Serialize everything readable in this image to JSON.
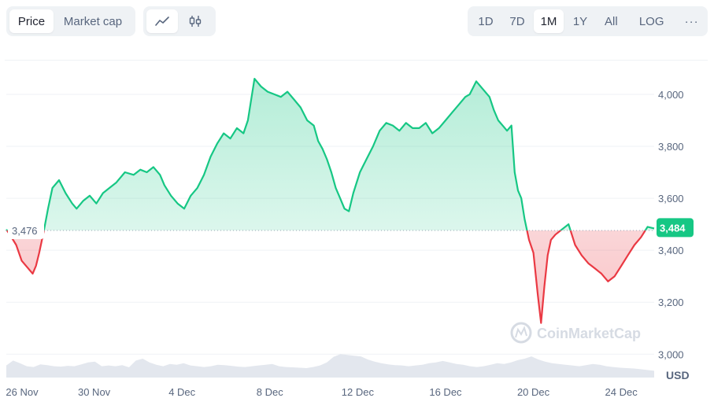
{
  "toolbar": {
    "metric_tabs": [
      {
        "label": "Price",
        "active": true
      },
      {
        "label": "Market cap",
        "active": false
      }
    ],
    "chart_type_icons": [
      "line-chart-icon",
      "candlestick-icon"
    ],
    "ranges": [
      {
        "label": "1D",
        "active": false
      },
      {
        "label": "7D",
        "active": false
      },
      {
        "label": "1M",
        "active": true
      },
      {
        "label": "1Y",
        "active": false
      },
      {
        "label": "All",
        "active": false
      }
    ],
    "log_label": "LOG",
    "more_label": "···"
  },
  "watermark": "CoinMarketCap",
  "colors": {
    "up": "#16c784",
    "down": "#ea3943",
    "grid": "#eff2f5",
    "volume": "#e3e7ee"
  },
  "chart_data": {
    "type": "area",
    "currency_label": "USD",
    "baseline_price": 3476,
    "baseline_label": "3,476",
    "last_price": 3484,
    "last_label": "3,484",
    "y_ticks": [
      "3,000",
      "3,200",
      "3,400",
      "3,600",
      "3,800",
      "4,000"
    ],
    "y_tick_values": [
      3000,
      3200,
      3400,
      3600,
      3800,
      4000
    ],
    "ylim": [
      2910,
      4130
    ],
    "x_ticks": [
      "26 Nov",
      "30 Nov",
      "4 Dec",
      "8 Dec",
      "12 Dec",
      "16 Dec",
      "20 Dec",
      "24 Dec"
    ],
    "x_tick_days": [
      0,
      4,
      8,
      12,
      16,
      20,
      24,
      28
    ],
    "xlim_days": [
      0,
      29.5
    ],
    "series": [
      {
        "x_days": [
          0,
          0.2,
          0.45,
          0.7,
          1.0,
          1.2,
          1.35,
          1.5,
          1.7,
          1.9,
          2.1,
          2.4,
          2.7,
          3.0,
          3.2,
          3.5,
          3.8,
          4.1,
          4.4,
          4.7,
          5.0,
          5.4,
          5.8,
          6.1,
          6.4,
          6.7,
          7.0,
          7.2,
          7.5,
          7.8,
          8.1,
          8.4,
          8.7,
          9.0,
          9.3,
          9.6,
          9.9,
          10.2,
          10.5,
          10.8,
          11.0,
          11.15,
          11.3,
          11.6,
          11.9,
          12.2,
          12.5,
          12.8,
          13.1,
          13.4,
          13.7,
          14.0,
          14.2,
          14.4,
          14.6,
          14.8,
          15.0,
          15.2,
          15.4,
          15.6,
          15.8,
          16.1,
          16.4,
          16.7,
          17.0,
          17.3,
          17.6,
          17.9,
          18.2,
          18.5,
          18.8,
          19.1,
          19.4,
          19.7,
          20.0,
          20.3,
          20.6,
          20.9,
          21.1,
          21.4,
          21.7,
          22.0,
          22.2,
          22.4,
          22.6,
          22.8,
          23.0,
          23.15,
          23.3,
          23.45,
          23.6,
          23.8,
          24.0,
          24.2,
          24.35,
          24.5,
          24.65,
          24.8,
          25.0,
          25.3,
          25.6,
          25.9,
          26.2,
          26.5,
          26.8,
          27.1,
          27.4,
          27.7,
          28.0,
          28.3,
          28.6,
          28.9,
          29.2,
          29.5
        ],
        "values": [
          3480,
          3455,
          3420,
          3360,
          3330,
          3310,
          3340,
          3390,
          3470,
          3560,
          3640,
          3670,
          3620,
          3580,
          3560,
          3590,
          3610,
          3580,
          3620,
          3640,
          3660,
          3700,
          3690,
          3710,
          3700,
          3720,
          3690,
          3650,
          3610,
          3580,
          3560,
          3610,
          3640,
          3690,
          3760,
          3810,
          3850,
          3830,
          3870,
          3850,
          3900,
          3980,
          4060,
          4030,
          4010,
          4000,
          3990,
          4010,
          3980,
          3950,
          3900,
          3880,
          3820,
          3790,
          3750,
          3700,
          3640,
          3600,
          3560,
          3550,
          3620,
          3700,
          3750,
          3800,
          3860,
          3890,
          3880,
          3860,
          3890,
          3870,
          3870,
          3890,
          3850,
          3870,
          3900,
          3930,
          3960,
          3990,
          4000,
          4050,
          4020,
          3990,
          3940,
          3900,
          3880,
          3860,
          3880,
          3700,
          3630,
          3600,
          3520,
          3440,
          3390,
          3230,
          3120,
          3260,
          3380,
          3440,
          3460,
          3480,
          3500,
          3420,
          3380,
          3350,
          3330,
          3310,
          3280,
          3300,
          3340,
          3380,
          3420,
          3450,
          3490,
          3484
        ]
      }
    ],
    "volume": [
      0.32,
      0.45,
      0.38,
      0.3,
      0.28,
      0.35,
      0.33,
      0.3,
      0.29,
      0.31,
      0.3,
      0.35,
      0.4,
      0.42,
      0.3,
      0.32,
      0.3,
      0.33,
      0.27,
      0.45,
      0.5,
      0.4,
      0.34,
      0.3,
      0.36,
      0.34,
      0.38,
      0.32,
      0.3,
      0.28,
      0.3,
      0.34,
      0.33,
      0.31,
      0.29,
      0.28,
      0.3,
      0.32,
      0.34,
      0.36,
      0.3,
      0.28,
      0.27,
      0.26,
      0.25,
      0.28,
      0.32,
      0.4,
      0.55,
      0.62,
      0.6,
      0.58,
      0.56,
      0.48,
      0.42,
      0.38,
      0.35,
      0.33,
      0.32,
      0.3,
      0.32,
      0.34,
      0.38,
      0.4,
      0.44,
      0.4,
      0.36,
      0.34,
      0.3,
      0.28,
      0.3,
      0.34,
      0.38,
      0.36,
      0.4,
      0.46,
      0.5,
      0.56,
      0.48,
      0.42,
      0.38,
      0.36,
      0.34,
      0.32,
      0.3,
      0.33,
      0.36,
      0.34,
      0.3,
      0.28,
      0.26,
      0.25,
      0.24,
      0.22,
      0.2,
      0.18
    ]
  }
}
